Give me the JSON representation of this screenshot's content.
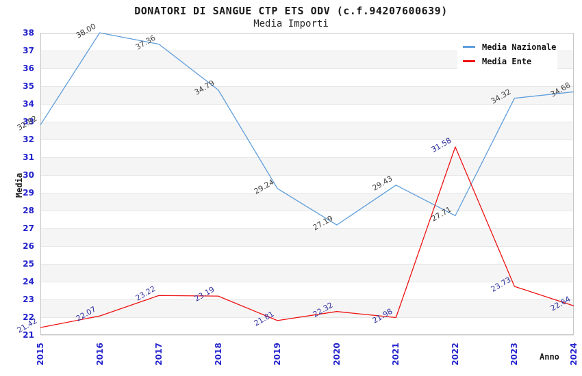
{
  "title": "DONATORI DI SANGUE CTP ETS ODV (c.f.94207600639)",
  "subtitle": "Media Importi",
  "axes": {
    "y_label": "Media",
    "x_label": "Anno"
  },
  "chart_data": {
    "type": "line",
    "categories": [
      "2015",
      "2016",
      "2017",
      "2018",
      "2019",
      "2020",
      "2021",
      "2022",
      "2023",
      "2024"
    ],
    "series": [
      {
        "name": "Media Nazionale",
        "color": "#5f9edb",
        "label_color": "#3f3f3f",
        "values": [
          32.82,
          38.0,
          37.36,
          34.79,
          29.24,
          27.19,
          29.43,
          27.71,
          34.32,
          34.68
        ]
      },
      {
        "name": "Media Ente",
        "color": "#ee1111",
        "label_color": "#2d2d9e",
        "values": [
          21.42,
          22.07,
          23.22,
          23.19,
          21.81,
          22.32,
          21.98,
          31.58,
          23.73,
          22.64
        ]
      }
    ],
    "xlabel": "Anno",
    "ylabel": "Media",
    "ylim": [
      21,
      38
    ],
    "ytick_step": 1,
    "xtick_rotation": -90,
    "point_label_decimals": 2,
    "grid": "horizontal-only",
    "legend_position": "top-right",
    "colors": {
      "tick_label": "#2222cc",
      "grid_line": "#e6e6e6",
      "band_fill": "#f5f5f5",
      "plot_border": "#c6c6c6"
    }
  }
}
